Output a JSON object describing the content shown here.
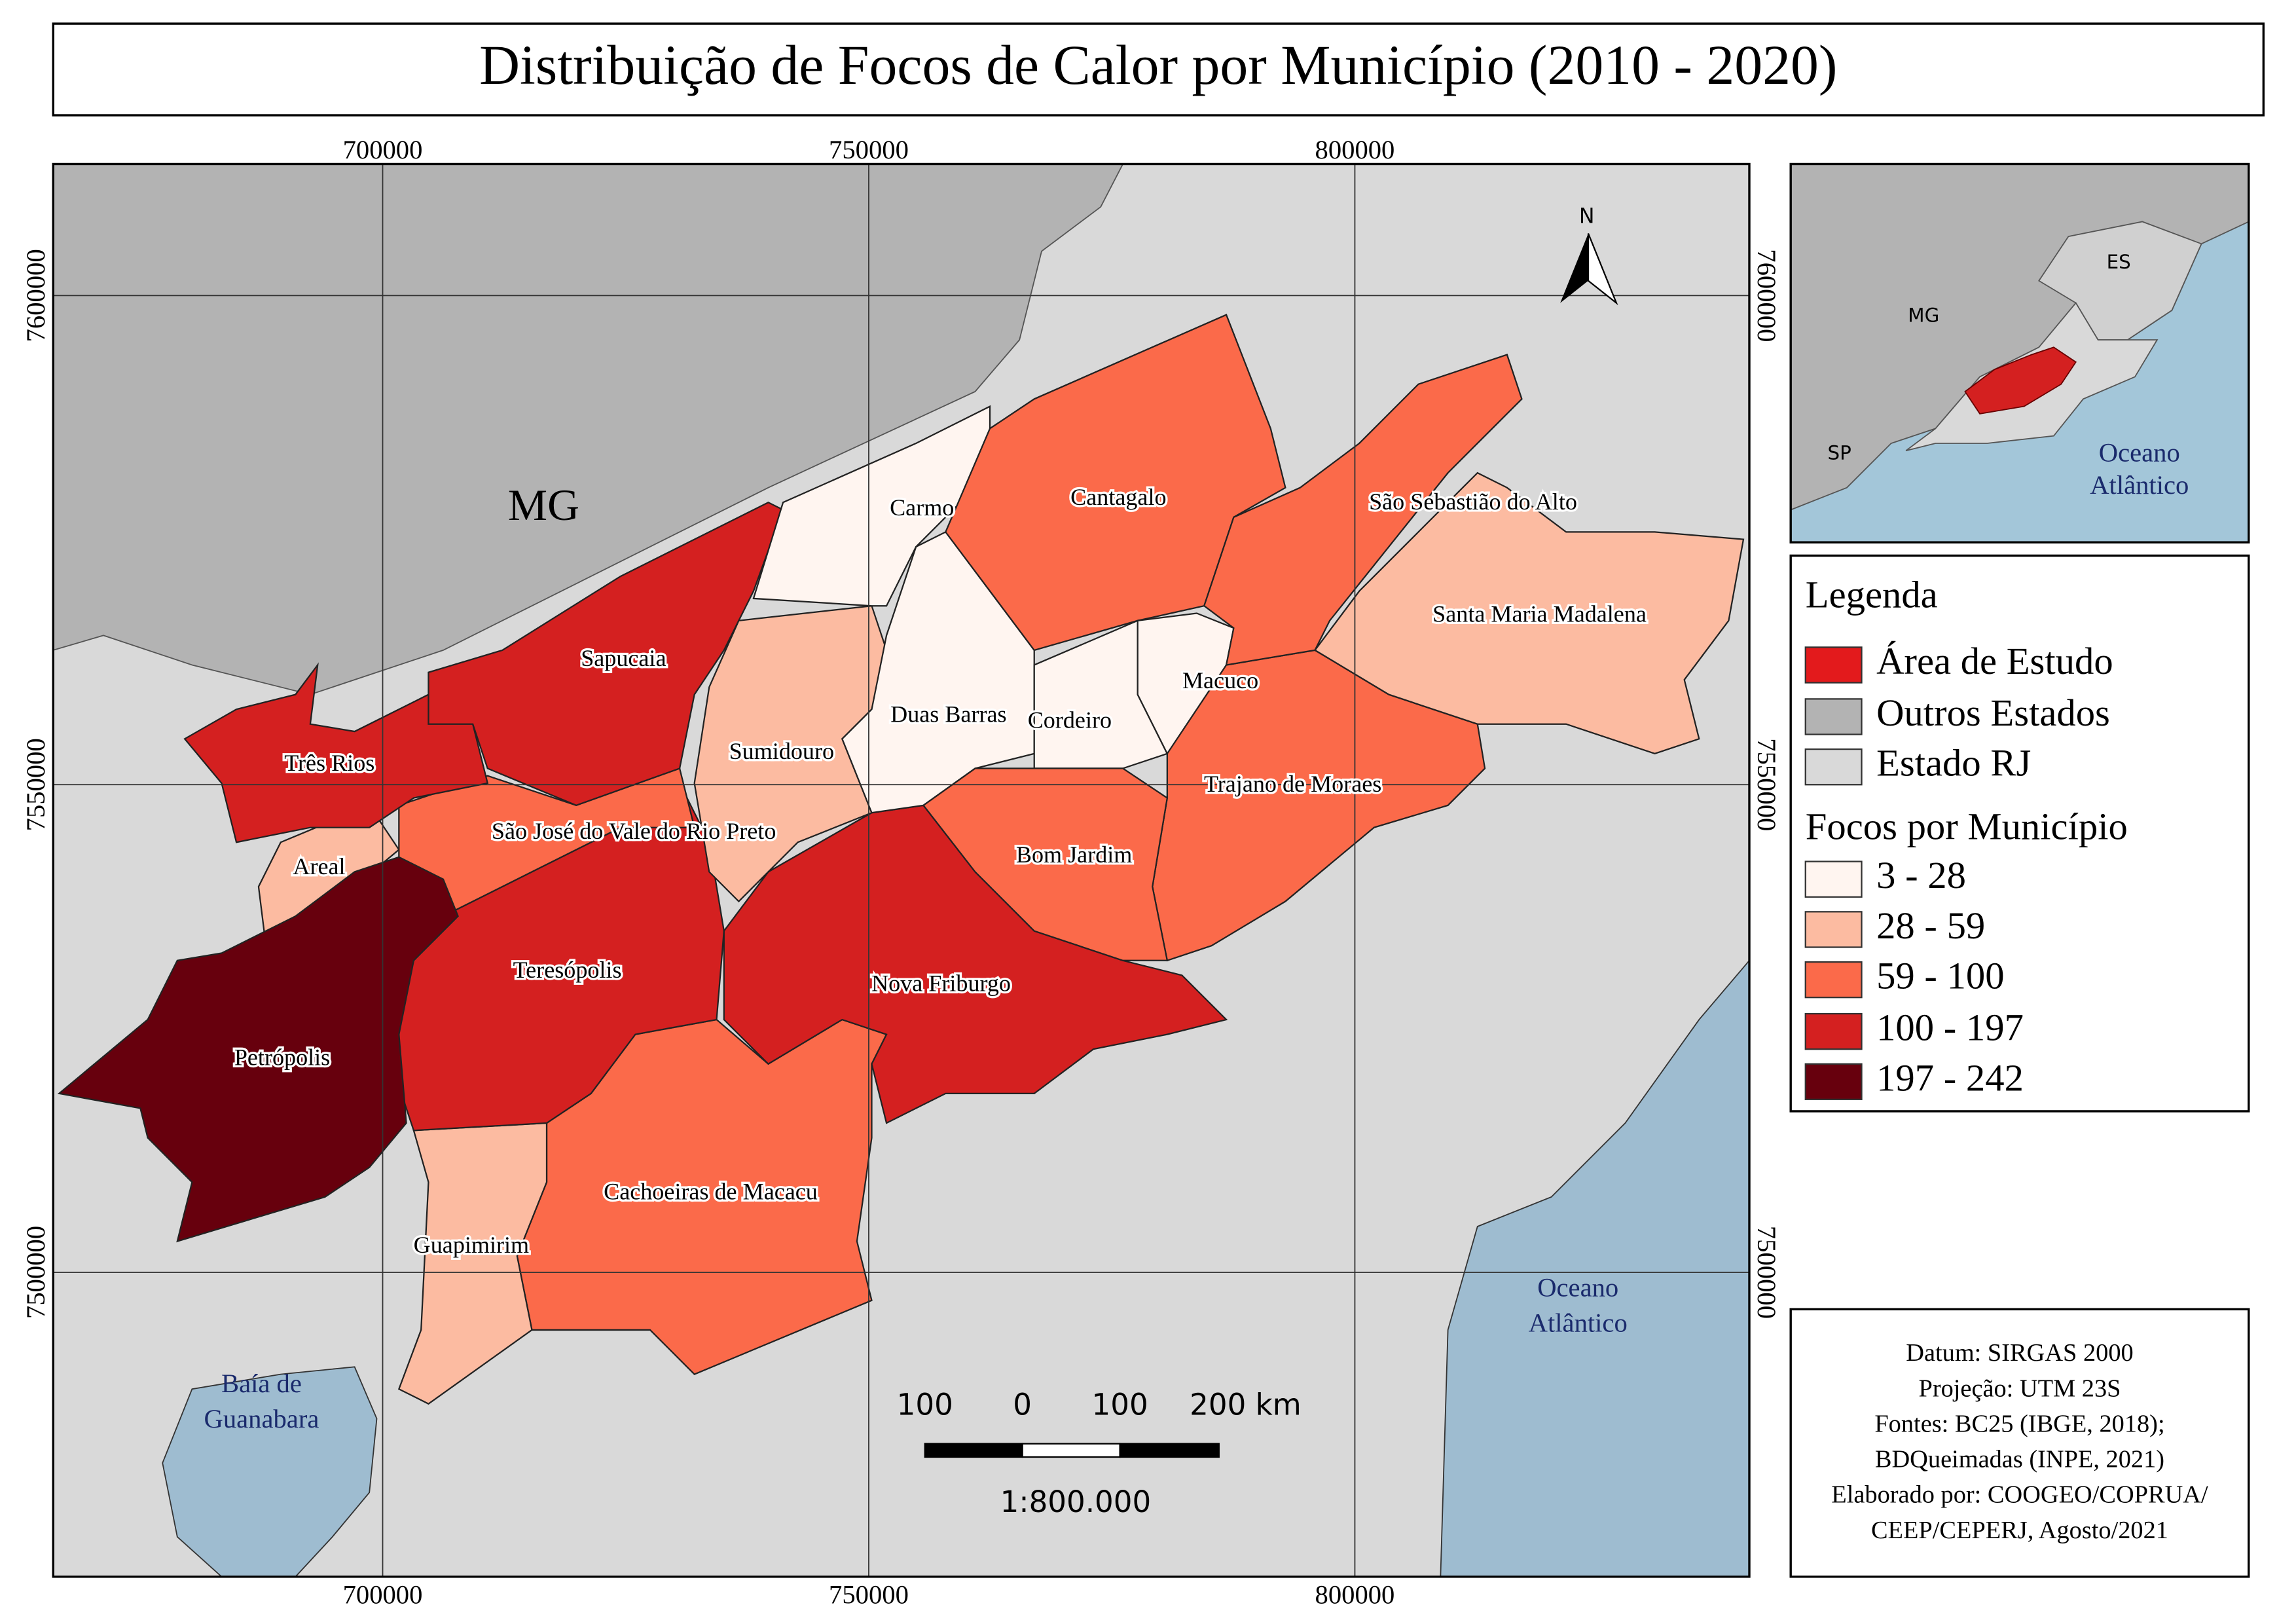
{
  "title": "Distribuição de Focos de Calor por Município (2010 - 2020)",
  "map": {
    "x_labels": [
      "700000",
      "750000",
      "800000"
    ],
    "y_labels": [
      "7600000",
      "7550000",
      "7500000"
    ],
    "north": "N",
    "state_label": "MG",
    "municipalities": [
      "Carmo",
      "Cantagalo",
      "São Sebastião do Alto",
      "Santa Maria Madalena",
      "Sapucaia",
      "Macuco",
      "Duas Barras",
      "Cordeiro",
      "Sumidouro",
      "Três Rios",
      "Trajano de Moraes",
      "São José do Vale do Rio Preto",
      "Bom Jardim",
      "Areal",
      "Teresópolis",
      "Nova Friburgo",
      "Petrópolis",
      "Cachoeiras de Macacu",
      "Guapimirim"
    ],
    "ocean": [
      "Oceano",
      "Atlântico"
    ],
    "bay": [
      "Baía de",
      "Guanabara"
    ],
    "scale": {
      "labels": [
        "100",
        "0",
        "100",
        "200 km"
      ],
      "ratio": "1:800.000"
    }
  },
  "inset": {
    "labels": [
      "MG",
      "ES",
      "SP"
    ],
    "ocean": [
      "Oceano",
      "Atlântico"
    ]
  },
  "legend": {
    "title": "Legenda",
    "items": [
      "Área de Estudo",
      "Outros Estados",
      "Estado RJ"
    ],
    "classes_title": "Focos por Município",
    "classes": [
      "3 - 28",
      "28 - 59",
      "59 - 100",
      "100 - 197",
      "197 - 242"
    ]
  },
  "info": [
    "Datum: SIRGAS 2000",
    "Projeção: UTM 23S",
    "Fontes: BC25 (IBGE, 2018);",
    "BDQueimadas (INPE, 2021)",
    "Elaborado por: COOGEO/COPRUA/",
    "CEEP/CEPERJ, Agosto/2021"
  ]
}
